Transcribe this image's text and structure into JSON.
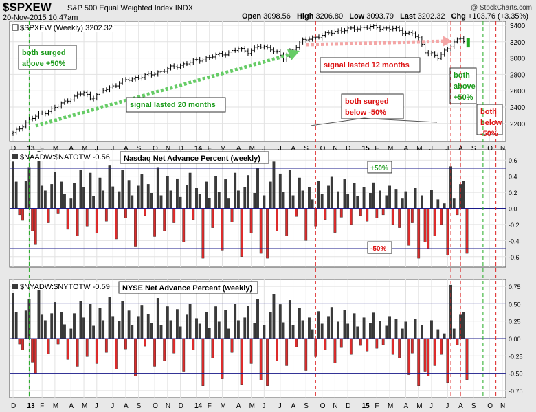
{
  "header": {
    "symbol": "$SPXEW",
    "description": "S&P 500 Equal Weighted Index  INDX",
    "date": "20-Nov-2015 10:47am",
    "open_label": "Open",
    "open": "3098.56",
    "high_label": "High",
    "high": "3206.80",
    "low_label": "Low",
    "low": "3093.79",
    "last_label": "Last",
    "last": "3202.32",
    "chg_label": "Chg",
    "chg": "+103.76 (+3.35%)",
    "brand": "@ StockCharts.com"
  },
  "chart_data": [
    {
      "type": "candlestick",
      "label": "$SPXEW (Weekly) 3202.32",
      "ylim": [
        1980,
        3450
      ],
      "yticks": [
        2200,
        2400,
        2600,
        2800,
        3000,
        3200,
        3400
      ],
      "key_points": [
        {
          "x": 0,
          "y": 2080
        },
        {
          "x": 2,
          "y": 2140
        },
        {
          "x": 4,
          "y": 2220
        },
        {
          "x": 8,
          "y": 2310
        },
        {
          "x": 13,
          "y": 2390
        },
        {
          "x": 17,
          "y": 2490
        },
        {
          "x": 22,
          "y": 2580
        },
        {
          "x": 24,
          "y": 2510
        },
        {
          "x": 28,
          "y": 2600
        },
        {
          "x": 33,
          "y": 2700
        },
        {
          "x": 38,
          "y": 2760
        },
        {
          "x": 43,
          "y": 2800
        },
        {
          "x": 49,
          "y": 2880
        },
        {
          "x": 55,
          "y": 2950
        },
        {
          "x": 61,
          "y": 3010
        },
        {
          "x": 66,
          "y": 3060
        },
        {
          "x": 70,
          "y": 3110
        },
        {
          "x": 73,
          "y": 3080
        },
        {
          "x": 76,
          "y": 3140
        },
        {
          "x": 80,
          "y": 3120
        },
        {
          "x": 82,
          "y": 3070
        },
        {
          "x": 84,
          "y": 2980
        },
        {
          "x": 86,
          "y": 3090
        },
        {
          "x": 90,
          "y": 3210
        },
        {
          "x": 94,
          "y": 3260
        },
        {
          "x": 98,
          "y": 3300
        },
        {
          "x": 101,
          "y": 3340
        },
        {
          "x": 105,
          "y": 3350
        },
        {
          "x": 109,
          "y": 3380
        },
        {
          "x": 114,
          "y": 3370
        },
        {
          "x": 118,
          "y": 3360
        },
        {
          "x": 121,
          "y": 3320
        },
        {
          "x": 124,
          "y": 3300
        },
        {
          "x": 126,
          "y": 3230
        },
        {
          "x": 128,
          "y": 3080
        },
        {
          "x": 130,
          "y": 3060
        },
        {
          "x": 132,
          "y": 3000
        },
        {
          "x": 134,
          "y": 3080
        },
        {
          "x": 137,
          "y": 3200
        },
        {
          "x": 139,
          "y": 3240
        },
        {
          "x": 140,
          "y": 3202
        }
      ]
    },
    {
      "type": "bar",
      "label": "$NAADW:$NATOTW -0.56",
      "title": "Nasdaq Net Advance Percent (weekly)",
      "ylim": [
        -0.73,
        0.73
      ],
      "yticks": [
        -0.6,
        -0.4,
        -0.2,
        0.0,
        0.2,
        0.4,
        0.6
      ],
      "ytick_labels": [
        "-0.6",
        "-0.4",
        "-0.2",
        "0.0",
        "0.2",
        "0.4",
        "0.6"
      ],
      "reference_lines": [
        0.5,
        -0.5
      ],
      "reference_labels": [
        "+50%",
        "-50%"
      ],
      "values": [
        0.58,
        0.33,
        -0.08,
        -0.15,
        0.34,
        0.51,
        -0.28,
        -0.45,
        0.71,
        0.28,
        0.22,
        -0.18,
        0.3,
        0.45,
        -0.06,
        0.33,
        0.18,
        -0.26,
        0.12,
        0.31,
        -0.34,
        0.48,
        0.26,
        -0.22,
        0.44,
        0.15,
        -0.31,
        0.38,
        0.22,
        -0.16,
        0.53,
        0.27,
        -0.38,
        0.21,
        0.48,
        -0.12,
        0.35,
        0.16,
        -0.47,
        0.28,
        0.42,
        -0.09,
        0.3,
        0.19,
        -0.35,
        0.51,
        0.16,
        -0.28,
        0.4,
        0.22,
        -0.18,
        0.37,
        0.14,
        -0.42,
        0.29,
        0.44,
        -0.14,
        0.25,
        0.18,
        -0.62,
        0.33,
        0.13,
        -0.24,
        0.4,
        0.2,
        -0.52,
        0.36,
        0.12,
        -0.17,
        0.44,
        0.22,
        -0.6,
        0.26,
        0.41,
        -0.31,
        0.19,
        0.5,
        -0.56,
        0.16,
        -0.62,
        0.33,
        0.58,
        -0.28,
        0.43,
        0.2,
        -0.34,
        0.48,
        0.16,
        -0.1,
        0.38,
        0.22,
        -0.4,
        0.26,
        0.11,
        -0.22,
        0.34,
        0.18,
        -0.14,
        0.28,
        0.39,
        -0.3,
        0.21,
        -0.11,
        0.36,
        0.18,
        -0.2,
        0.31,
        0.15,
        -0.09,
        0.26,
        -0.16,
        0.19,
        0.32,
        -0.12,
        0.22,
        -0.08,
        0.16,
        0.28,
        -0.2,
        0.24,
        -0.24,
        0.12,
        0.21,
        -0.46,
        -0.18,
        0.25,
        -0.62,
        0.16,
        -0.42,
        -0.5,
        0.23,
        -0.34,
        0.11,
        -0.2,
        0.06,
        -0.58,
        0.52,
        0.12,
        -0.08,
        0.3,
        0.34,
        -0.56
      ]
    },
    {
      "type": "bar",
      "label": "$NYADW:$NYTOTW -0.59",
      "title": "NYSE Net Advance Percent (weekly)",
      "ylim": [
        -0.85,
        0.85
      ],
      "yticks": [
        -0.75,
        -0.5,
        -0.25,
        0.0,
        0.25,
        0.5,
        0.75
      ],
      "ytick_labels": [
        "-0.75",
        "-0.50",
        "-0.25",
        "0.00",
        "0.25",
        "0.50",
        "0.75"
      ],
      "reference_lines": [
        0.5,
        -0.5
      ],
      "values": [
        0.66,
        0.38,
        -0.08,
        -0.16,
        0.4,
        0.57,
        -0.34,
        -0.5,
        0.8,
        0.34,
        0.26,
        -0.22,
        0.36,
        0.52,
        -0.08,
        0.38,
        0.2,
        -0.3,
        0.14,
        0.36,
        -0.4,
        0.54,
        0.3,
        -0.26,
        0.5,
        0.18,
        -0.36,
        0.44,
        0.26,
        -0.2,
        0.6,
        0.32,
        -0.44,
        0.25,
        0.54,
        -0.15,
        0.4,
        0.19,
        -0.54,
        0.32,
        0.48,
        -0.11,
        0.35,
        0.22,
        -0.4,
        0.58,
        0.19,
        -0.32,
        0.46,
        0.26,
        -0.21,
        0.42,
        0.17,
        -0.48,
        0.34,
        0.5,
        -0.16,
        0.29,
        0.21,
        -0.68,
        0.38,
        0.15,
        -0.28,
        0.46,
        0.24,
        -0.58,
        0.41,
        0.14,
        -0.2,
        0.5,
        0.26,
        -0.66,
        0.3,
        0.47,
        -0.36,
        0.22,
        0.57,
        -0.6,
        0.19,
        -0.68,
        0.38,
        0.64,
        -0.32,
        0.49,
        0.23,
        -0.39,
        0.55,
        0.19,
        -0.12,
        0.44,
        0.26,
        -0.46,
        0.3,
        0.13,
        -0.26,
        0.39,
        0.21,
        -0.16,
        0.32,
        0.45,
        -0.35,
        0.24,
        -0.13,
        0.41,
        0.21,
        -0.23,
        0.36,
        0.17,
        -0.1,
        0.3,
        -0.18,
        0.22,
        0.37,
        -0.14,
        0.25,
        -0.09,
        0.18,
        0.32,
        -0.23,
        0.28,
        -0.28,
        0.14,
        0.24,
        -0.52,
        -0.21,
        0.28,
        -0.68,
        0.19,
        -0.48,
        -0.54,
        0.26,
        -0.39,
        0.13,
        -0.23,
        0.07,
        -0.64,
        0.77,
        0.14,
        -0.09,
        0.34,
        0.38,
        -0.59
      ]
    }
  ],
  "x_axis": {
    "labels": [
      {
        "week": 0,
        "text": "D"
      },
      {
        "week": 5,
        "text": "13",
        "bold": true
      },
      {
        "week": 9,
        "text": "F"
      },
      {
        "week": 13,
        "text": "M"
      },
      {
        "week": 18,
        "text": "A"
      },
      {
        "week": 22,
        "text": "M"
      },
      {
        "week": 26,
        "text": "J"
      },
      {
        "week": 31,
        "text": "J"
      },
      {
        "week": 35,
        "text": "A"
      },
      {
        "week": 39,
        "text": "S"
      },
      {
        "week": 44,
        "text": "O"
      },
      {
        "week": 48,
        "text": "N"
      },
      {
        "week": 52,
        "text": "D"
      },
      {
        "week": 57,
        "text": "14",
        "bold": true
      },
      {
        "week": 61,
        "text": "F"
      },
      {
        "week": 65,
        "text": "M"
      },
      {
        "week": 70,
        "text": "A"
      },
      {
        "week": 74,
        "text": "M"
      },
      {
        "week": 78,
        "text": "J"
      },
      {
        "week": 83,
        "text": "J"
      },
      {
        "week": 87,
        "text": "A"
      },
      {
        "week": 91,
        "text": "S"
      },
      {
        "week": 96,
        "text": "O"
      },
      {
        "week": 100,
        "text": "N"
      },
      {
        "week": 104,
        "text": "D"
      },
      {
        "week": 109,
        "text": "15",
        "bold": true
      },
      {
        "week": 113,
        "text": "F"
      },
      {
        "week": 117,
        "text": "M"
      },
      {
        "week": 122,
        "text": "A"
      },
      {
        "week": 126,
        "text": "M"
      },
      {
        "week": 130,
        "text": "J"
      },
      {
        "week": 135,
        "text": "J"
      },
      {
        "week": 139,
        "text": "A"
      },
      {
        "week": 143,
        "text": "S"
      },
      {
        "week": 148,
        "text": "O"
      },
      {
        "week": 152,
        "text": "N"
      }
    ]
  },
  "signal_lines": [
    {
      "week": 5,
      "color": "#22aa22"
    },
    {
      "week": 94,
      "color": "#dd2222"
    },
    {
      "week": 136,
      "color": "#dd2222"
    },
    {
      "week": 139,
      "color": "#dd2222"
    },
    {
      "week": 146,
      "color": "#22aa22"
    },
    {
      "week": 150,
      "color": "#dd2222"
    }
  ],
  "annotations": {
    "both_surged_above": [
      "both surged",
      "above +50%"
    ],
    "signal_20": "signal lasted 20 months",
    "signal_12": "signal lasted 12 months",
    "both_surged_below": [
      "both surged",
      "below -50%"
    ],
    "both_above": [
      "both",
      "above",
      "+50%"
    ],
    "both_below": [
      "both",
      "below",
      "-50%"
    ]
  },
  "colors": {
    "up_bar": "#3a3a3a",
    "down_bar": "#dd2c2c",
    "green_text": "#1a9a1a",
    "red_text": "#dd1111",
    "ref_line": "#1a1a8a",
    "green_arrow": "#66cc66",
    "pink_arrow": "#f4a6a6"
  }
}
